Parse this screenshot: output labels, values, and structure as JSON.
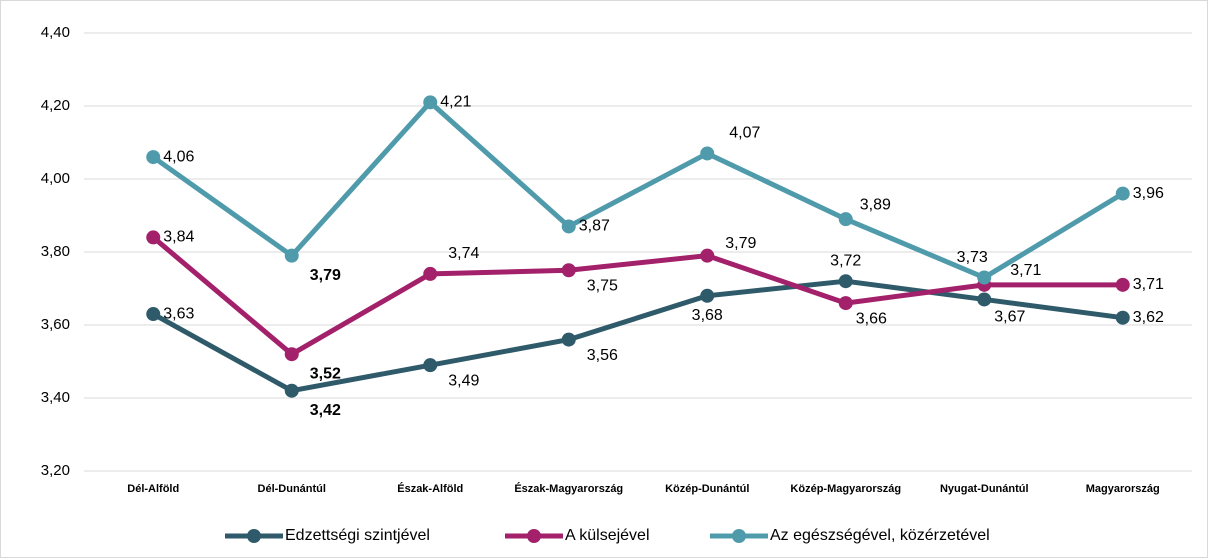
{
  "chart_data": {
    "type": "line",
    "categories": [
      "Dél-Alföld",
      "Dél-Dunántúl",
      "Észak-Alföld",
      "Észak-Magyarország",
      "Közép-Dunántúl",
      "Közép-Magyarország",
      "Nyugat-Dunántúl",
      "Magyarország"
    ],
    "series": [
      {
        "name": "Edzettségi szintjével",
        "color": "#2f5a6a",
        "values": [
          3.63,
          3.42,
          3.49,
          3.56,
          3.68,
          3.72,
          3.67,
          3.62
        ],
        "value_labels": [
          "3,63",
          "3,42",
          "3,49",
          "3,56",
          "3,68",
          "3,72",
          "3,67",
          "3,62"
        ]
      },
      {
        "name": "A külsejével",
        "color": "#a3206a",
        "values": [
          3.84,
          3.52,
          3.74,
          3.75,
          3.79,
          3.66,
          3.71,
          3.71
        ],
        "value_labels": [
          "3,84",
          "3,52",
          "3,74",
          "3,75",
          "3,79",
          "3,66",
          "3,71",
          "3,71"
        ]
      },
      {
        "name": "Az egészségével, közérzetével",
        "color": "#4f9bab",
        "values": [
          4.06,
          3.79,
          4.21,
          3.87,
          4.07,
          3.89,
          3.73,
          3.96
        ],
        "value_labels": [
          "4,06",
          "3,79",
          "4,21",
          "3,87",
          "4,07",
          "3,89",
          "3,73",
          "3,96"
        ]
      }
    ],
    "ylim": [
      3.2,
      4.4
    ],
    "yticks": [
      {
        "value": 3.2,
        "label": "3,20"
      },
      {
        "value": 3.4,
        "label": "3,40"
      },
      {
        "value": 3.6,
        "label": "3,60"
      },
      {
        "value": 3.8,
        "label": "3,80"
      },
      {
        "value": 4.0,
        "label": "4,00"
      },
      {
        "value": 4.2,
        "label": "4,20"
      },
      {
        "value": 4.4,
        "label": "4,40"
      }
    ],
    "grid": true,
    "legend": "bottom",
    "bold_labels_at": 1
  }
}
